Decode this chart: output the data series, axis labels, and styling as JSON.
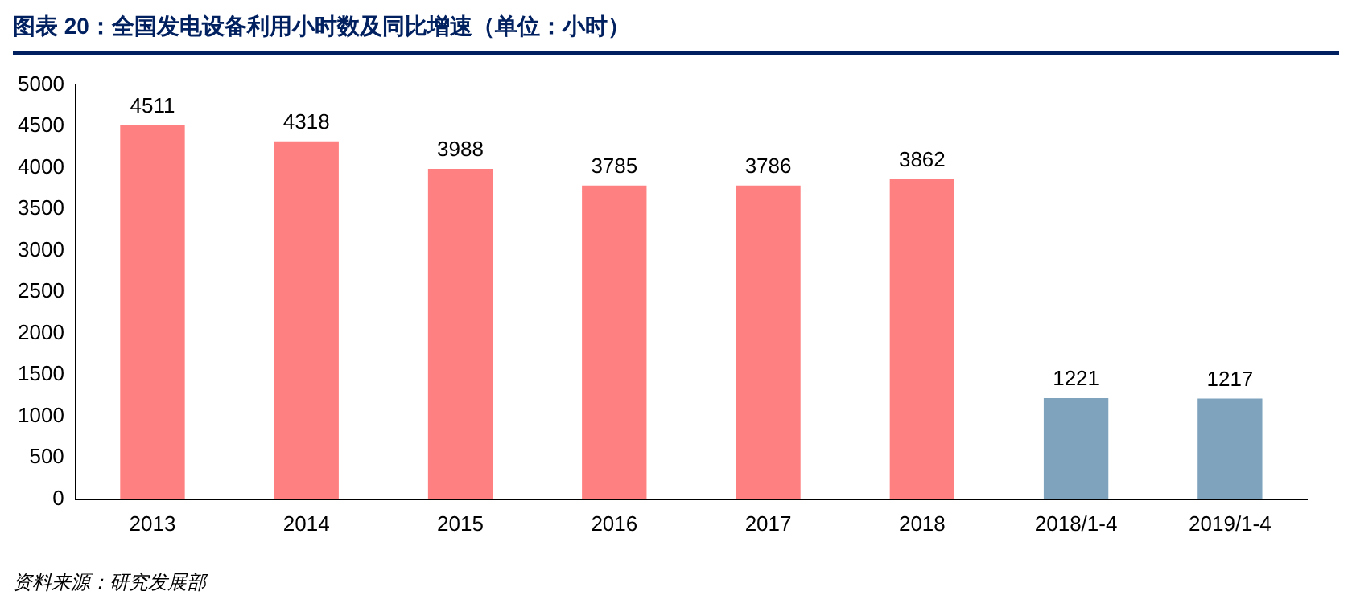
{
  "chart_data": {
    "type": "bar",
    "title": "图表 20：全国发电设备利用小时数及同比增速（单位：小时）",
    "categories": [
      "2013",
      "2014",
      "2015",
      "2016",
      "2017",
      "2018",
      "2018/1-4",
      "2019/1-4"
    ],
    "values": [
      4511,
      4318,
      3988,
      3785,
      3786,
      3862,
      1221,
      1217
    ],
    "colors": [
      "#ff8080",
      "#ff8080",
      "#ff8080",
      "#ff8080",
      "#ff8080",
      "#ff8080",
      "#7fa3bd",
      "#7fa3bd"
    ],
    "ylim": [
      0,
      5000
    ],
    "yticks": [
      0,
      500,
      1000,
      1500,
      2000,
      2500,
      3000,
      3500,
      4000,
      4500,
      5000
    ],
    "grid": false,
    "legend": false,
    "data_labels": true,
    "annotations": [
      "资料来源：研究发展部"
    ]
  }
}
